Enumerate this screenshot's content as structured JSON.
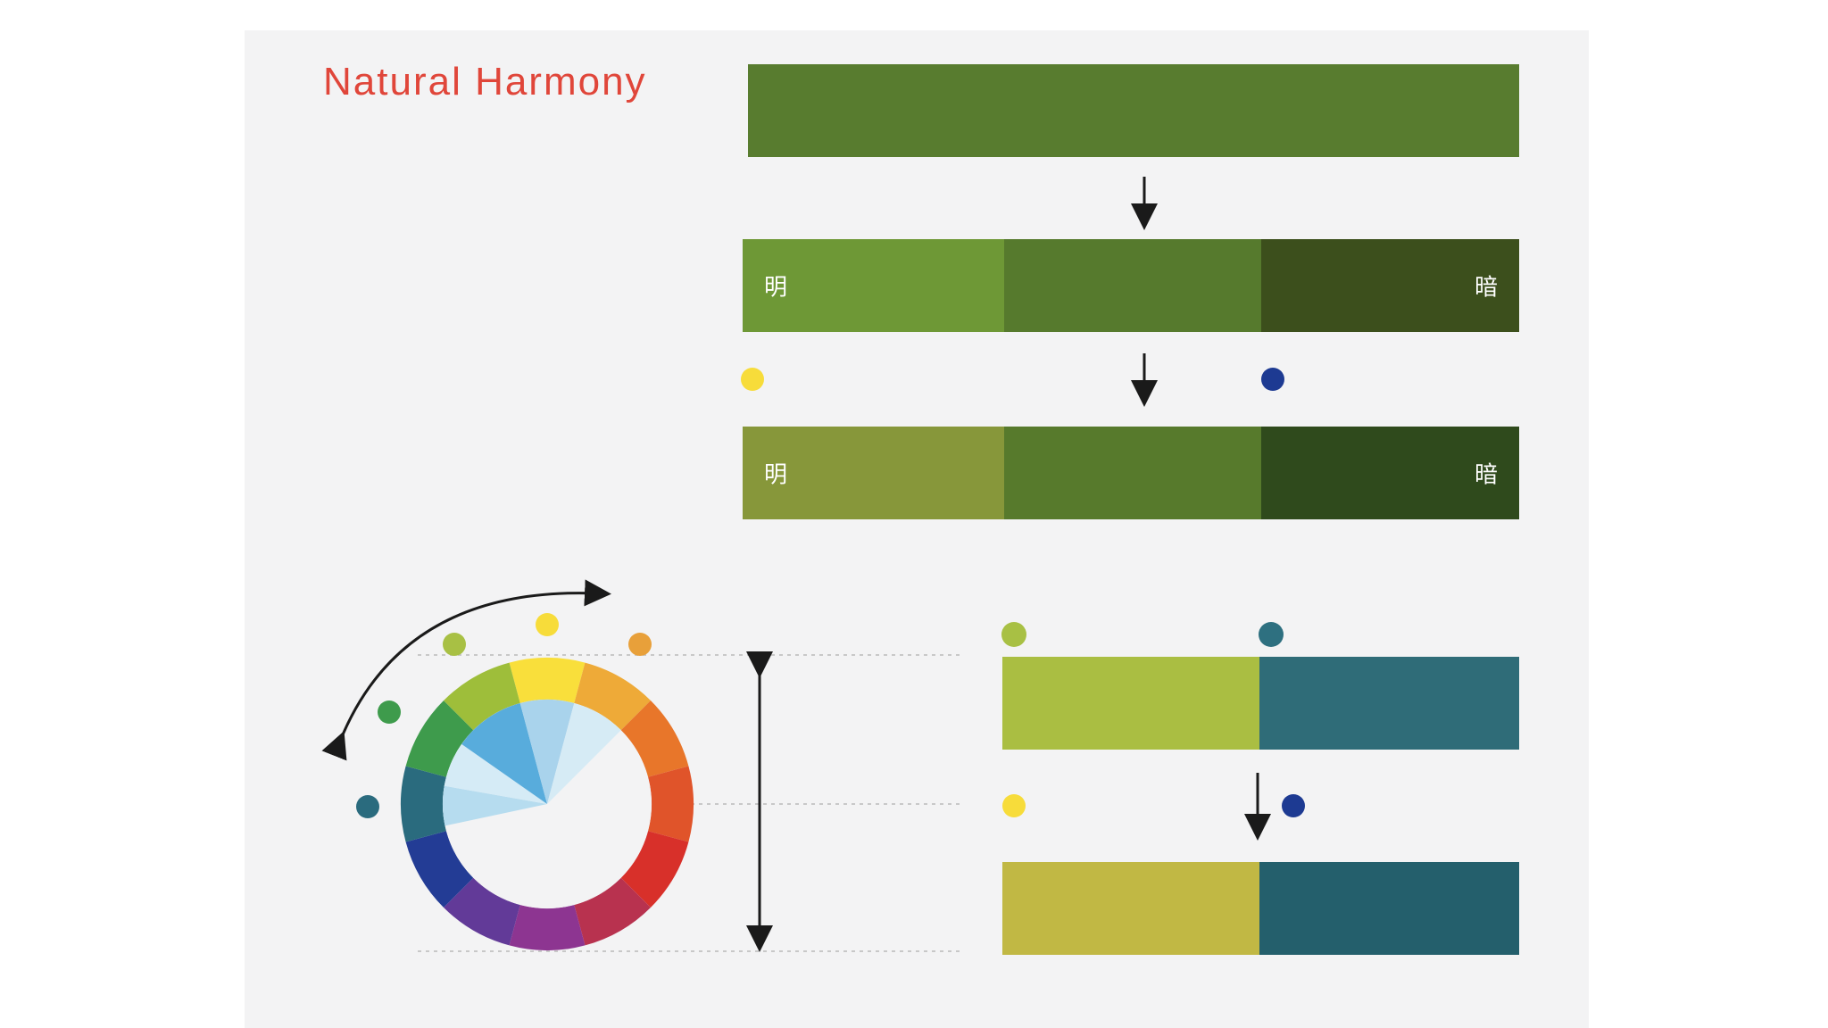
{
  "title": "Natural Harmony",
  "base_bar": {
    "color": "#587c2f"
  },
  "row1": {
    "segments": [
      {
        "color": "#6e9836",
        "label": "明"
      },
      {
        "color": "#567a2d",
        "label": ""
      },
      {
        "color": "#3c4f1c",
        "label": "暗"
      }
    ]
  },
  "row1_dots": {
    "warm": "#f7dc3a",
    "cool": "#1d3a92"
  },
  "row2": {
    "segments": [
      {
        "color": "#87973a",
        "label": "明"
      },
      {
        "color": "#577a2c",
        "label": ""
      },
      {
        "color": "#2f4a1c",
        "label": "暗"
      }
    ]
  },
  "pair1": {
    "dots": [
      "#a8c044",
      "#2e7080"
    ],
    "segments": [
      {
        "color": "#aabe42"
      },
      {
        "color": "#2f6c78"
      }
    ]
  },
  "pair1_dots_mid": {
    "warm": "#f7dc3a",
    "cool": "#1d3a92"
  },
  "pair2": {
    "segments": [
      {
        "color": "#c1b844"
      },
      {
        "color": "#245f6c"
      }
    ]
  },
  "wheel": {
    "ring_colors": [
      "#f9df3b",
      "#eeaa38",
      "#e8762a",
      "#e0542a",
      "#d8302a",
      "#b8324f",
      "#8d3591",
      "#623a98",
      "#233c95",
      "#2a6b7e",
      "#3e9b4c",
      "#9ebe3a"
    ],
    "wedge_colors": [
      "#b6dcef",
      "#d5ebf6",
      "#58acdc",
      "#a9d3ec",
      "#d6ebf5"
    ],
    "outer_dots": [
      "#2a6b7e",
      "#3e9b4c",
      "#a8c044",
      "#f7dc3a",
      "#e8a03a"
    ]
  },
  "arrow_color": "#1a1a1a",
  "guide_color": "#c8c8c8"
}
